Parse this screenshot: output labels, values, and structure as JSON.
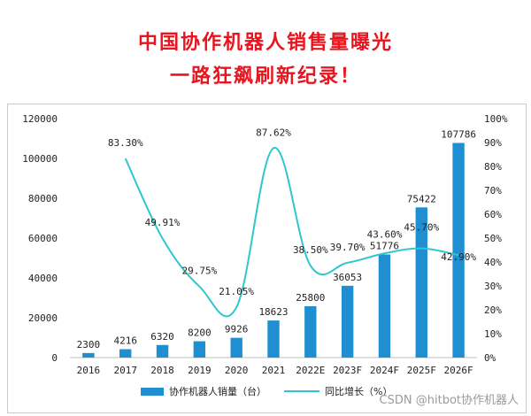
{
  "title": {
    "line1": "中国协作机器人销售量曝光",
    "line2": "一路狂飙刷新纪录！"
  },
  "watermark": "CSDN @hitbot协作机器人",
  "colors": {
    "title": "#e8141e",
    "bar": "#1f8fd1",
    "line": "#2ec7cf"
  },
  "chart_data": {
    "type": "bar",
    "categories": [
      "2016",
      "2017",
      "2018",
      "2019",
      "2020",
      "2021",
      "2022E",
      "2023F",
      "2024F",
      "2025F",
      "2026F"
    ],
    "series": [
      {
        "name": "协作机器人销量（台）",
        "type": "bar",
        "axis": "left",
        "values": [
          2300,
          4216,
          6320,
          8200,
          9926,
          18623,
          25800,
          36053,
          51776,
          75422,
          107786
        ],
        "labels": [
          "2300",
          "4216",
          "6320",
          "8200",
          "9926",
          "18623",
          "25800",
          "36053",
          "51776",
          "75422",
          "107786"
        ]
      },
      {
        "name": "同比增长（%）",
        "type": "line",
        "axis": "right",
        "values": [
          null,
          83.3,
          49.91,
          29.75,
          21.05,
          87.62,
          38.5,
          39.7,
          43.6,
          45.7,
          42.9
        ],
        "labels": [
          "",
          "83.30%",
          "49.91%",
          "29.75%",
          "21.05%",
          "87.62%",
          "38.50%",
          "39.70%",
          "43.60%",
          "45.70%",
          "42.90%"
        ]
      }
    ],
    "y_left": {
      "range": [
        0,
        120000
      ],
      "ticks": [
        "0",
        "20000",
        "40000",
        "60000",
        "80000",
        "100000",
        "120000"
      ]
    },
    "y_right": {
      "range": [
        0,
        100
      ],
      "ticks": [
        "0%",
        "10%",
        "20%",
        "30%",
        "40%",
        "50%",
        "60%",
        "70%",
        "80%",
        "90%",
        "100%"
      ]
    },
    "grid": false,
    "legend": "bottom"
  }
}
